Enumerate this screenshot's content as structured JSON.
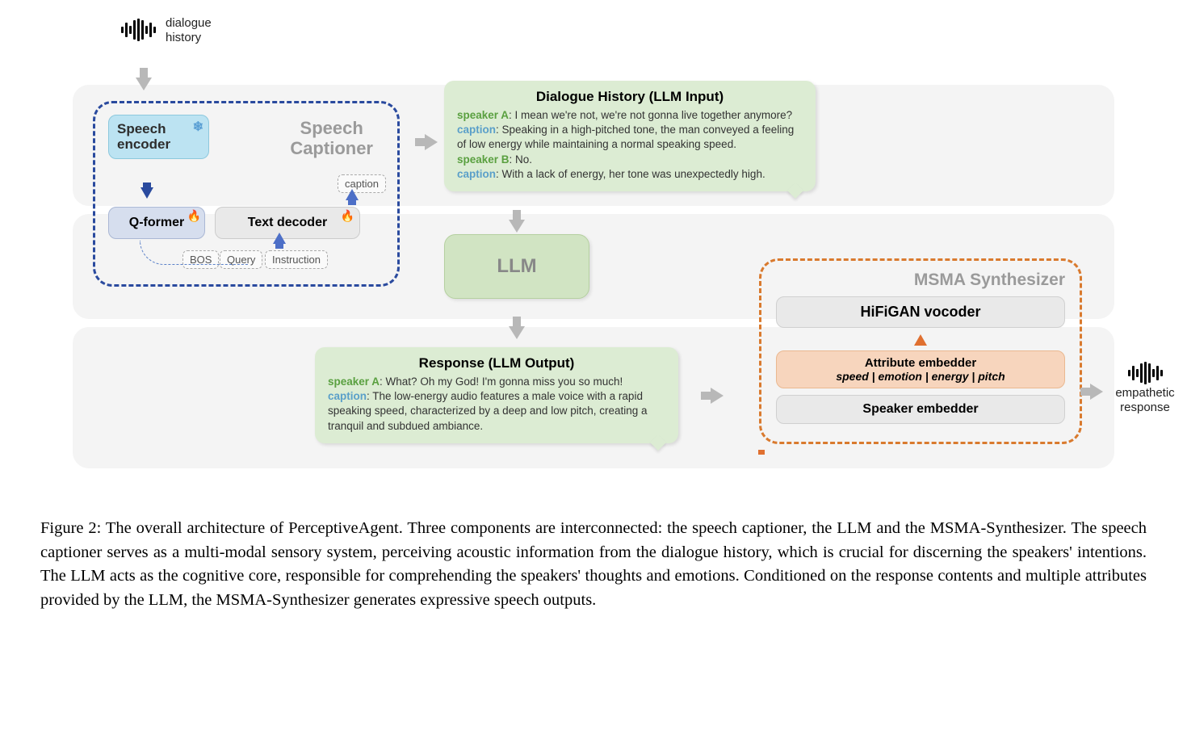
{
  "labels": {
    "dialogue_history": "dialogue\nhistory",
    "empathetic_response": "empathetic\nresponse",
    "captioner_title": "Speech\nCaptioner",
    "speech_encoder": "Speech\nencoder",
    "qformer": "Q-former",
    "text_decoder": "Text decoder",
    "caption_mini": "caption",
    "bos": "BOS",
    "query": "Query",
    "instruction": "Instruction",
    "llm": "LLM",
    "msma_title": "MSMA Synthesizer",
    "hifigan": "HiFiGAN vocoder",
    "attr_title": "Attribute embedder",
    "attr_sub": "speed | emotion | energy |  pitch",
    "speaker_emb": "Speaker embedder"
  },
  "dialogue_input": {
    "title": "Dialogue History (LLM Input)",
    "lines": [
      {
        "who": "speaker A",
        "cls": "sp-a",
        "text": ": I mean we're not, we're not gonna live together anymore?"
      },
      {
        "who": "caption",
        "cls": "cap-lbl",
        "text": ": Speaking in a high-pitched tone, the man conveyed a feeling of low energy while maintaining a normal speaking speed."
      },
      {
        "who": "speaker B",
        "cls": "sp-b",
        "text": ": No."
      },
      {
        "who": "caption",
        "cls": "cap-lbl",
        "text": ": With a lack of energy, her tone was unexpectedly high."
      }
    ]
  },
  "response_output": {
    "title": "Response (LLM Output)",
    "lines": [
      {
        "who": "speaker A",
        "cls": "sp-a",
        "text": ": What? Oh my God! I'm gonna miss you so much!"
      },
      {
        "who": "caption",
        "cls": "cap-lbl",
        "text": ": The low-energy audio features a male voice with a rapid speaking speed, characterized by a deep and low pitch, creating a tranquil and subdued ambiance."
      }
    ]
  },
  "figure_caption": {
    "num": "Figure 2:",
    "text": " The overall architecture of PerceptiveAgent. Three components are interconnected: the speech captioner, the LLM and the MSMA-Synthesizer. The speech captioner serves as a multi-modal sensory system, perceiving acoustic information from the dialogue history, which is crucial for discerning the speakers' intentions. The LLM acts as the cognitive core, responsible for comprehending the speakers' thoughts and emotions. Conditioned on the response contents and multiple attributes provided by the LLM, the MSMA-Synthesizer generates expressive speech outputs."
  },
  "colors": {
    "band_bg": "#f4f4f4",
    "captioner_border": "#2a4a9e",
    "msma_border": "#d97a2e",
    "bubble_bg": "#dcecd3",
    "speech_encoder_bg": "#bce3f2",
    "qformer_bg": "#d6deee",
    "textdecoder_bg": "#e9e9e9",
    "attr_bg": "#f7d5bd",
    "speaker_a_color": "#5aa040",
    "caption_color": "#5a9fc9",
    "arrow_gray": "#b8b8b8",
    "arrow_blue": "#2a4a9e",
    "arrow_orange": "#e07030"
  },
  "diagram_type": "flowchart"
}
